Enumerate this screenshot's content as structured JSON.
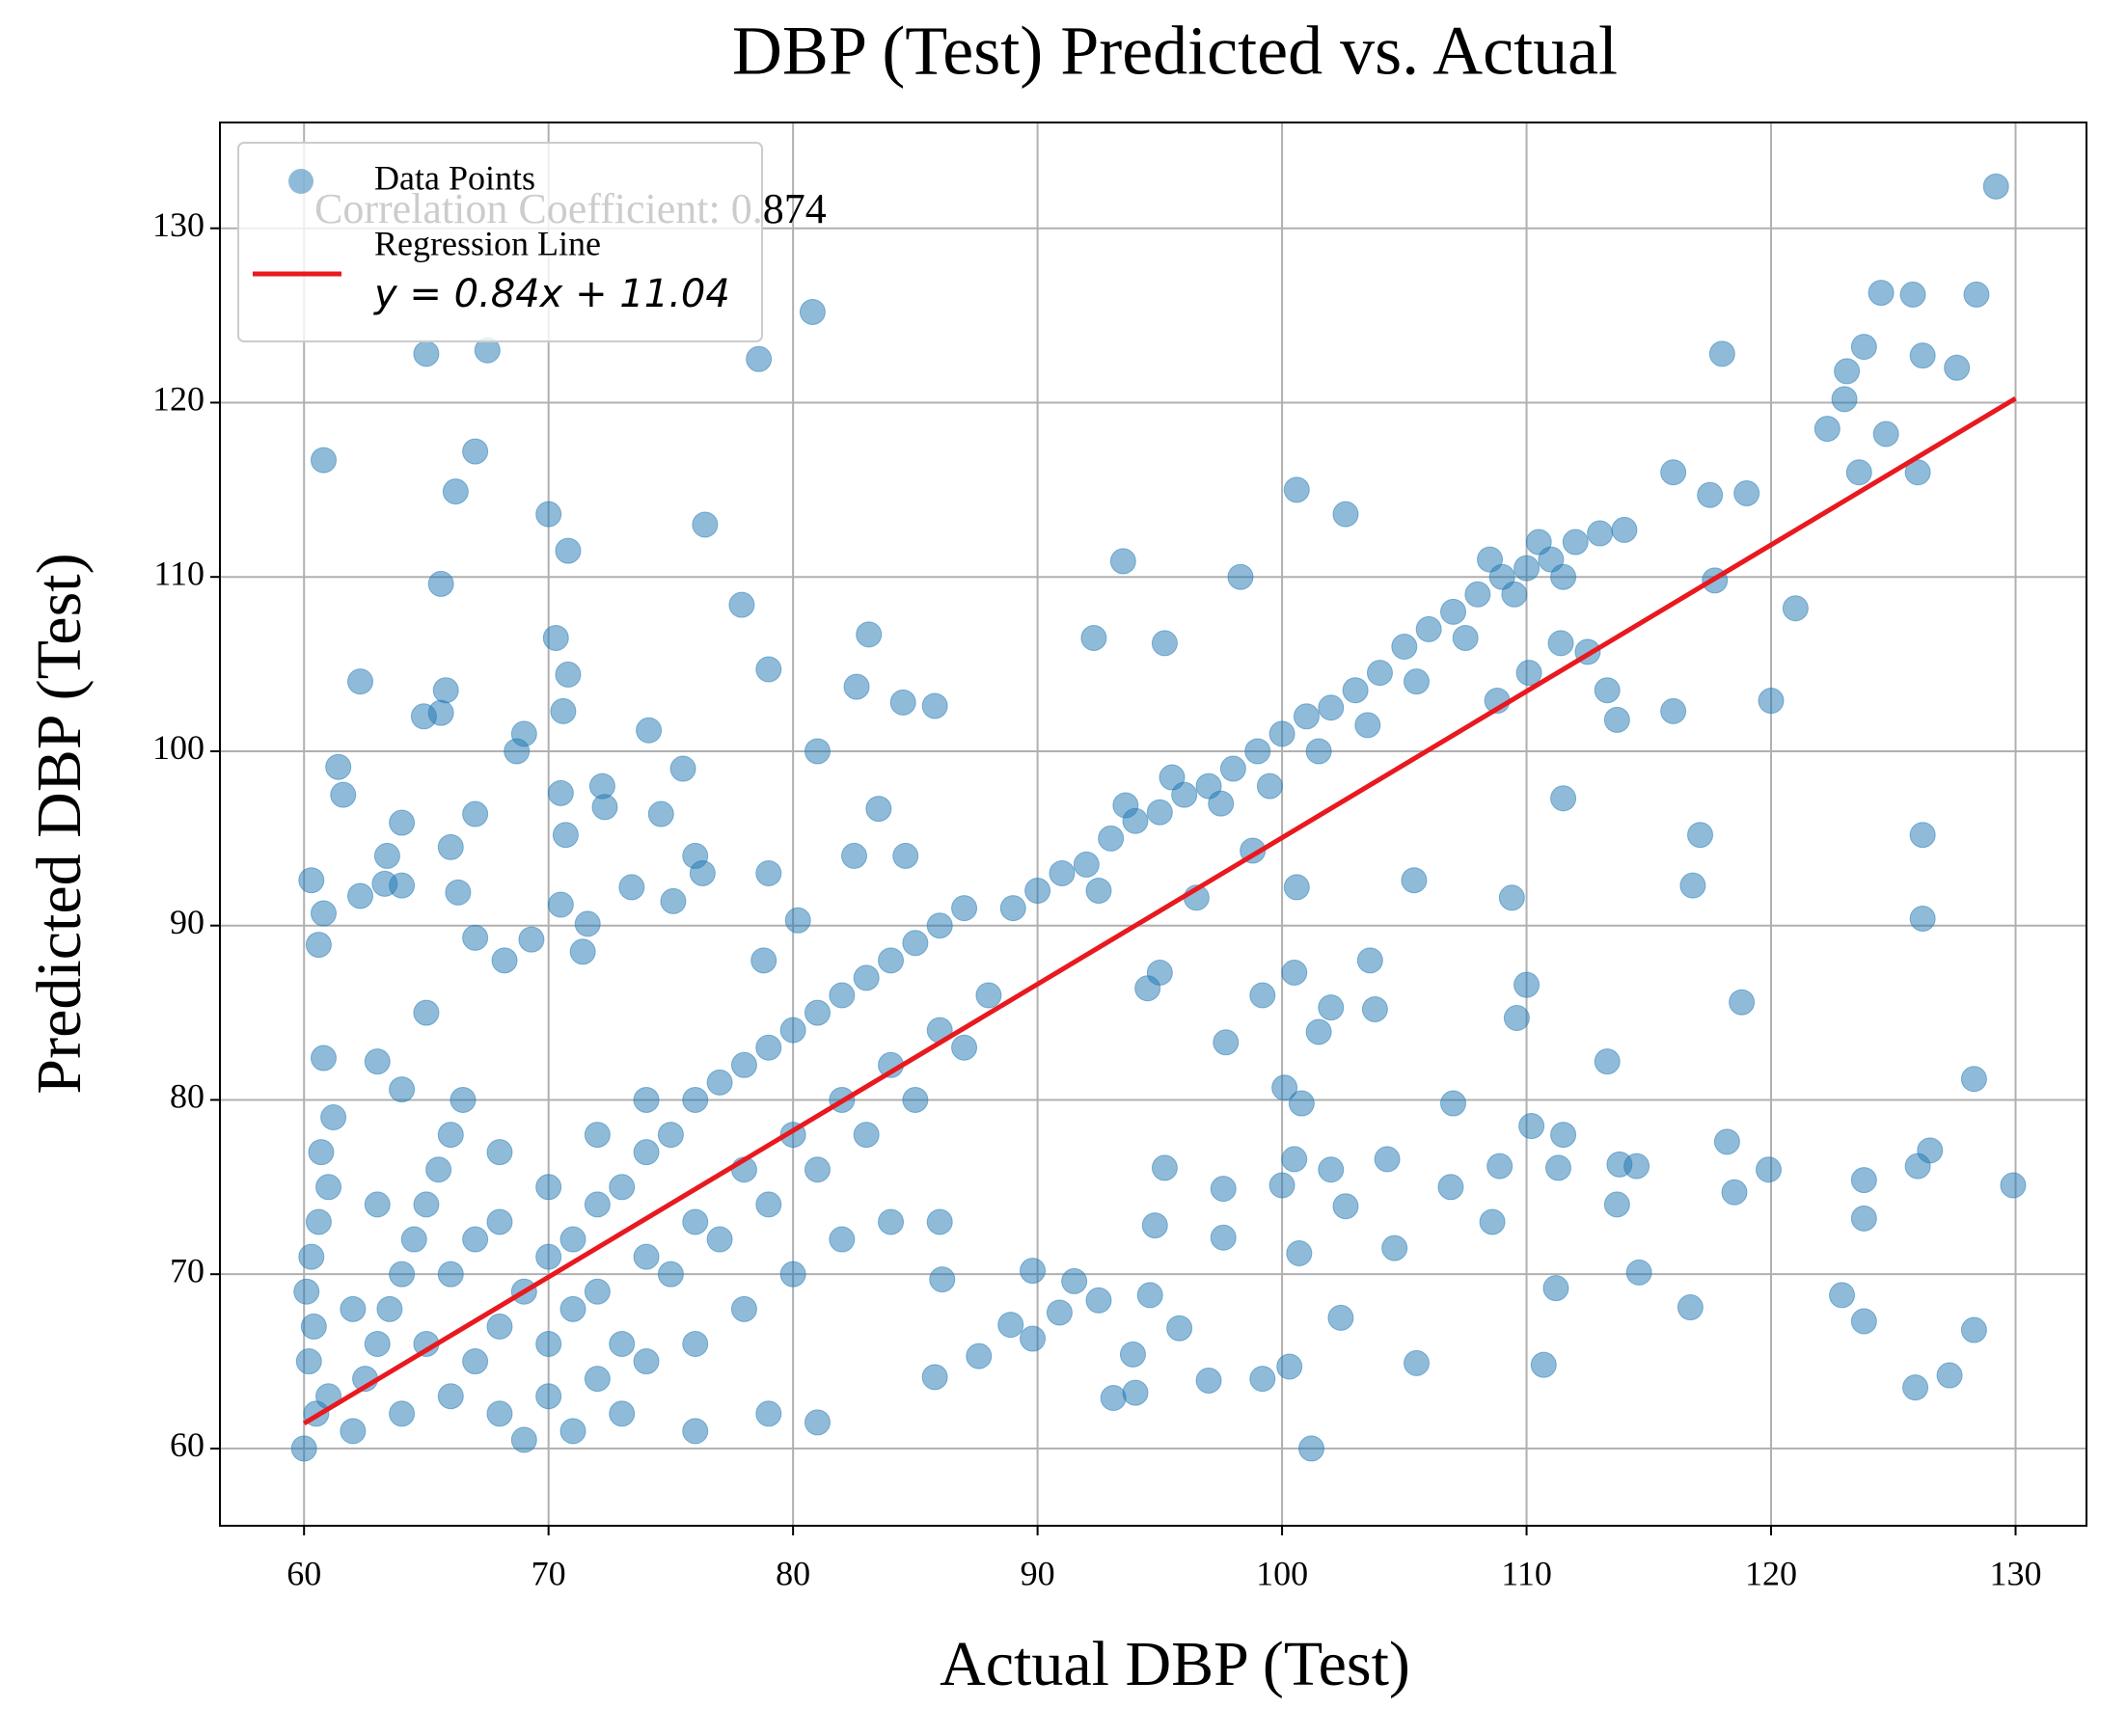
{
  "chart_data": {
    "type": "scatter",
    "title": "DBP (Test) Predicted vs. Actual",
    "xlabel": "Actual DBP (Test)",
    "ylabel": "Predicted DBP (Test)",
    "annotation": "Correlation Coefficient: 0.874",
    "xlim": [
      56.56,
      132.9
    ],
    "ylim": [
      55.57,
      136.07
    ],
    "xticks": [
      60,
      70,
      80,
      90,
      100,
      110,
      120,
      130
    ],
    "yticks": [
      60,
      70,
      80,
      90,
      100,
      110,
      120,
      130
    ],
    "grid": true,
    "legend": "upper left",
    "x": [
      60.8,
      67.5,
      65,
      78.6,
      80.8,
      129.2,
      124.5,
      125.8,
      128.4,
      123.8,
      118,
      126.2,
      127.6,
      123.1,
      123,
      122.3,
      124.7,
      123.6,
      126,
      116,
      117.5,
      119,
      121,
      120,
      117.7,
      116,
      113.7,
      113.3,
      111.5,
      117.1,
      126.2,
      116.8,
      126.2,
      118.8,
      128.3,
      110,
      109.6,
      113.3,
      118.2,
      119.9,
      118.5,
      123.8,
      126.5,
      126,
      129.9,
      123.8,
      113.8,
      114.5,
      110.2,
      111.5,
      108.9,
      111.3,
      113.7,
      114.6,
      108.6,
      111.2,
      116.7,
      122.9,
      123.8,
      128.3,
      125.9,
      127.3,
      110.7,
      105.5,
      101.2,
      100.3,
      99.2,
      97,
      94,
      93.1,
      93.9,
      95.8,
      94.6,
      92.5,
      90.9,
      89.8,
      88.9,
      87.6,
      85.8,
      86.1,
      89.8,
      91.5,
      94.8,
      95.2,
      97.6,
      97.6,
      100,
      100.7,
      102.4,
      102,
      102.6,
      104.3,
      104.6,
      106.9,
      107,
      100.1,
      100.8,
      100.5,
      103.8,
      102,
      101.5,
      100.5,
      99.2,
      95,
      94.5,
      97.7,
      105.4,
      109.4,
      98.8,
      100.6,
      103.6,
      96.5,
      93.6,
      93.5,
      98.3,
      100.6,
      102.6,
      92.3,
      95.2,
      108.8,
      110.1,
      112.5,
      111.4,
      90,
      91,
      92,
      93,
      94,
      95,
      96,
      97,
      98,
      99,
      100,
      101,
      102,
      103,
      104,
      105,
      106,
      107,
      108,
      109,
      110,
      111,
      112,
      113,
      114,
      89,
      92.5,
      95.5,
      97.5,
      99.5,
      101.5,
      103.5,
      105.5,
      107.5,
      109.5,
      111.5,
      108.5,
      110.5,
      60,
      60.5,
      61,
      60.2,
      60.4,
      60.1,
      60.3,
      60.6,
      61,
      60.7,
      61.2,
      62,
      62.5,
      63,
      63.5,
      64,
      64.5,
      65,
      65.5,
      66,
      66.5,
      64,
      66,
      67,
      68,
      69,
      70,
      71,
      72,
      73,
      74,
      75,
      76,
      77,
      78,
      79,
      80,
      81,
      82,
      83,
      84,
      85,
      86,
      87,
      68,
      70,
      72,
      74,
      76,
      78,
      80,
      82,
      84,
      86,
      70,
      72,
      74,
      76,
      78,
      80,
      82,
      84,
      86,
      88,
      70,
      68,
      72,
      74,
      66,
      63,
      68,
      62,
      65,
      67,
      71,
      73,
      75,
      77,
      79,
      81,
      83,
      85,
      87,
      79,
      81,
      76,
      73,
      71,
      69,
      62.3,
      64.9,
      65.6,
      65.8,
      70.3,
      70.6,
      70.8,
      69,
      68.7,
      61.4,
      61.6,
      64,
      67,
      70.5,
      70.7,
      72.2,
      72.3,
      74.1,
      74.6,
      75.5,
      76,
      76.3,
      79,
      79,
      77.9,
      76.4,
      70,
      70.8,
      66.2,
      67,
      65.6,
      83.1,
      82.6,
      84.5,
      85.8,
      81,
      83.5,
      82.5,
      84.6,
      60.3,
      60.8,
      60.6,
      62.3,
      63.3,
      63.4,
      64,
      66,
      66.3,
      65,
      67,
      68.2,
      69.3,
      70.5,
      71.4,
      71.6,
      73.4,
      75.1,
      78.8,
      80.2,
      60.8,
      63,
      64
    ],
    "series": [
      {
        "name": "Data Points",
        "color": "#1f77b4",
        "values": [
          116.7,
          123,
          122.8,
          122.5,
          125.2,
          132.4,
          126.3,
          126.2,
          126.2,
          123.2,
          122.8,
          122.7,
          122,
          121.8,
          120.2,
          118.5,
          118.2,
          116,
          116,
          116,
          114.7,
          114.8,
          108.2,
          102.9,
          109.8,
          102.3,
          101.8,
          103.5,
          97.3,
          95.2,
          95.2,
          92.3,
          90.4,
          85.6,
          81.2,
          86.6,
          84.7,
          82.2,
          77.6,
          76,
          74.7,
          75.4,
          77.1,
          76.2,
          75.1,
          73.2,
          76.3,
          76.2,
          78.5,
          78,
          76.2,
          76.1,
          74,
          70.1,
          73,
          69.2,
          68.1,
          68.8,
          67.3,
          66.8,
          63.5,
          64.2,
          64.8,
          64.9,
          60,
          64.7,
          64,
          63.9,
          63.2,
          62.9,
          65.4,
          66.9,
          68.8,
          68.5,
          67.8,
          66.3,
          67.1,
          65.3,
          64.1,
          69.7,
          70.2,
          69.6,
          72.8,
          76.1,
          72.1,
          74.9,
          75.1,
          71.2,
          67.5,
          76,
          73.9,
          76.6,
          71.5,
          75,
          79.8,
          80.7,
          79.8,
          76.6,
          85.2,
          85.3,
          83.9,
          87.3,
          86,
          87.3,
          86.4,
          83.3,
          92.6,
          91.6,
          94.3,
          92.2,
          88,
          91.6,
          96.9,
          110.9,
          110,
          115,
          113.6,
          106.5,
          106.2,
          102.9,
          104.5,
          105.7,
          106.2,
          92,
          93,
          93.5,
          95,
          96,
          96.5,
          97.5,
          98,
          99,
          100,
          101,
          102,
          102.5,
          103.5,
          104.5,
          106,
          107,
          108,
          109,
          110,
          110.5,
          111,
          112,
          112.5,
          112.7,
          91,
          92,
          98.5,
          97,
          98,
          100,
          101.5,
          104,
          106.5,
          109,
          110,
          111,
          112,
          60,
          62,
          63,
          65,
          67,
          69,
          71,
          73,
          75,
          77,
          79,
          61,
          64,
          66,
          68,
          70,
          72,
          74,
          76,
          78,
          80,
          62,
          63,
          65,
          67,
          69,
          71,
          72,
          74,
          75,
          77,
          78,
          80,
          81,
          82,
          83,
          84,
          85,
          86,
          87,
          88,
          89,
          90,
          91,
          62,
          63,
          64,
          65,
          66,
          68,
          70,
          72,
          73,
          73,
          66,
          69,
          71,
          73,
          76,
          78,
          80,
          82,
          84,
          86,
          75,
          73,
          78,
          80,
          70,
          74,
          77,
          68,
          66,
          72,
          68,
          66,
          70,
          72,
          74,
          76,
          78,
          80,
          83,
          62,
          61.5,
          61,
          62,
          61,
          60.5,
          104,
          102,
          102.2,
          103.5,
          106.5,
          102.3,
          104.4,
          101,
          100,
          99.1,
          97.5,
          95.9,
          96.4,
          97.6,
          95.2,
          98,
          96.8,
          101.2,
          96.4,
          99,
          94,
          93,
          93,
          104.7,
          108.4,
          113,
          113.6,
          111.5,
          114.9,
          117.2,
          109.6,
          106.7,
          103.7,
          102.8,
          102.6,
          100,
          96.7,
          94,
          94,
          92.6,
          90.7,
          88.9,
          91.7,
          92.4,
          94,
          92.3,
          94.5,
          91.9,
          85,
          89.3,
          88,
          89.2,
          91.2,
          88.5,
          90.1,
          92.2,
          91.4,
          88,
          90.3,
          82.4,
          82.2,
          80.6
        ]
      }
    ],
    "regression": {
      "name": "Regression Line",
      "label": "y = 0.84x + 11.04",
      "color": "#e8191f",
      "slope": 0.84,
      "intercept": 11.04,
      "x_range": [
        60,
        130
      ]
    }
  }
}
